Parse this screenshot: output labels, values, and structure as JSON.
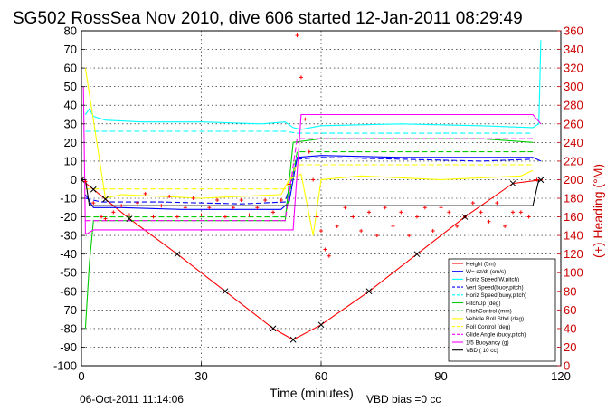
{
  "chart_data": {
    "type": "line",
    "title": "SG502 RossSea Nov 2010, dive 606 started 12-Jan-2011 08:29:49",
    "xlabel": "Time (minutes)",
    "ylabel_right": "(+) Heading (°M)",
    "footer_date": "06-Oct-2011 11:14:06",
    "footer_vbd": "VBD bias =0 cc",
    "xlim": [
      0,
      120
    ],
    "ylim": [
      -100,
      80
    ],
    "ylim_right": [
      0,
      360
    ],
    "grid": true,
    "legend_position": "lower-right",
    "xticks": [
      "0",
      "30",
      "60",
      "90",
      "120"
    ],
    "yticks": [
      "80",
      "70",
      "60",
      "50",
      "40",
      "30",
      "20",
      "10",
      "0",
      "-10",
      "-20",
      "-30",
      "-40",
      "-50",
      "-60",
      "-70",
      "-80",
      "-90",
      "-100"
    ],
    "yticks_right": [
      "360",
      "340",
      "320",
      "300",
      "280",
      "260",
      "240",
      "220",
      "200",
      "180",
      "160",
      "140",
      "120",
      "100",
      "80",
      "60",
      "40",
      "20",
      "0"
    ],
    "series": [
      {
        "name": "Height (5m)",
        "color": "#ff0000",
        "style": "solid",
        "x": [
          0,
          12,
          24,
          36,
          48,
          53,
          60,
          72,
          84,
          96,
          108,
          115.5
        ],
        "y": [
          0,
          -21,
          -40,
          -60,
          -80,
          -86,
          -78,
          -60,
          -40,
          -20,
          -2,
          0
        ]
      },
      {
        "name": "W= dz/dt (cm/s)",
        "color": "#0000ff",
        "style": "solid",
        "x": [
          1,
          3,
          10,
          25,
          40,
          50,
          52,
          54,
          60,
          80,
          100,
          113,
          115
        ],
        "y": [
          -8,
          -15,
          -15,
          -16,
          -16,
          -16,
          -12,
          12,
          13,
          12,
          12,
          12,
          10
        ]
      },
      {
        "name": "Horiz Speed W,pitch)",
        "color": "#00ffff",
        "style": "solid",
        "x": [
          1,
          2,
          3,
          6,
          15,
          30,
          45,
          51,
          53,
          55,
          60,
          80,
          100,
          113,
          114.5,
          115
        ],
        "y": [
          35,
          38,
          34,
          32,
          31,
          31,
          30,
          31,
          28,
          27,
          29,
          30,
          29,
          28,
          30,
          75
        ]
      },
      {
        "name": "Vert Speed(buoy,pitch)",
        "color": "#0000ff",
        "style": "dash",
        "x": [
          1,
          5,
          20,
          40,
          51,
          54,
          60,
          80,
          100,
          113
        ],
        "y": [
          -10,
          -12,
          -12,
          -13,
          -12,
          11,
          12,
          11,
          10,
          11
        ]
      },
      {
        "name": "Horiz Speed(buoy,pitch)",
        "color": "#00ffff",
        "style": "dash",
        "x": [
          1,
          5,
          30,
          51,
          54,
          80,
          113
        ],
        "y": [
          26,
          26,
          26,
          26,
          25,
          25,
          25
        ]
      },
      {
        "name": "PitchUp (deg)",
        "color": "#00cc00",
        "style": "solid",
        "x": [
          1,
          2,
          3,
          10,
          30,
          51,
          53,
          60,
          80,
          100,
          113
        ],
        "y": [
          -80,
          -45,
          -22,
          -22,
          -22,
          -22,
          20,
          22,
          22,
          22,
          20
        ]
      },
      {
        "name": "PitchControl (mm)",
        "color": "#00cc00",
        "style": "dash",
        "x": [
          1,
          5,
          30,
          51,
          54,
          80,
          113
        ],
        "y": [
          -20,
          -20,
          -20,
          -20,
          15,
          15,
          15
        ]
      },
      {
        "name": "Vehicle Roll Stbd (deg)",
        "color": "#ffff00",
        "style": "solid",
        "x": [
          1,
          6,
          10,
          20,
          30,
          40,
          50,
          52,
          55,
          58,
          60,
          70,
          80,
          90,
          100,
          110,
          113
        ],
        "y": [
          60,
          -10,
          -8,
          -9,
          -10,
          -9,
          -8,
          0,
          3,
          -30,
          0,
          2,
          1,
          0,
          1,
          2,
          5
        ]
      },
      {
        "name": "Roll Control (deg)",
        "color": "#ffff00",
        "style": "dash",
        "x": [
          1,
          10,
          30,
          51,
          54,
          80,
          113
        ],
        "y": [
          -5,
          -5,
          -5,
          -5,
          8,
          8,
          8
        ]
      },
      {
        "name": "Glide Angle (buoy,pitch)",
        "color": "#ff00ff",
        "style": "dash",
        "x": [
          1,
          5,
          30,
          51,
          54,
          80,
          113
        ],
        "y": [
          -22,
          -22,
          -22,
          -22,
          22,
          22,
          22
        ]
      },
      {
        "name": "1/5 Buoyancy (g)",
        "color": "#ff00ff",
        "style": "solid",
        "x": [
          0.5,
          1,
          1.5,
          3,
          53,
          55,
          113,
          115
        ],
        "y": [
          50,
          -29,
          -29,
          -27,
          -27,
          35,
          35,
          30
        ]
      },
      {
        "name": "VBD ( 10 cc)",
        "color": "#000000",
        "style": "solid",
        "x": [
          0,
          1,
          2,
          113,
          114.5
        ],
        "y": [
          0,
          0,
          -14,
          -14,
          0
        ]
      }
    ],
    "heading": {
      "name": "Heading",
      "color": "#ff0000",
      "axis": "right",
      "x": [
        1,
        3,
        5,
        6,
        8,
        10,
        12,
        14,
        16,
        18,
        20,
        22,
        24,
        26,
        28,
        30,
        32,
        34,
        36,
        38,
        40,
        42,
        44,
        46,
        48,
        50,
        52,
        54,
        55,
        56,
        57,
        58,
        59,
        60,
        61,
        62,
        64,
        66,
        68,
        70,
        72,
        74,
        76,
        78,
        80,
        82,
        84,
        86,
        88,
        90,
        92,
        94,
        96,
        98,
        100,
        102,
        104,
        106,
        108,
        110,
        112,
        114
      ],
      "y": [
        198,
        175,
        160,
        158,
        165,
        172,
        162,
        175,
        185,
        160,
        172,
        182,
        160,
        170,
        180,
        162,
        170,
        178,
        160,
        170,
        178,
        162,
        170,
        178,
        165,
        178,
        195,
        355,
        310,
        265,
        230,
        200,
        160,
        145,
        125,
        118,
        150,
        170,
        160,
        145,
        165,
        140,
        170,
        150,
        165,
        140,
        160,
        170,
        145,
        170,
        165,
        150,
        160,
        175,
        165,
        155,
        175,
        150,
        165,
        165,
        160,
        200
      ]
    },
    "vbd_marker_minutes": [
      0,
      3,
      6,
      12,
      24,
      36,
      48,
      53,
      60,
      72,
      84,
      96,
      108,
      115
    ]
  }
}
